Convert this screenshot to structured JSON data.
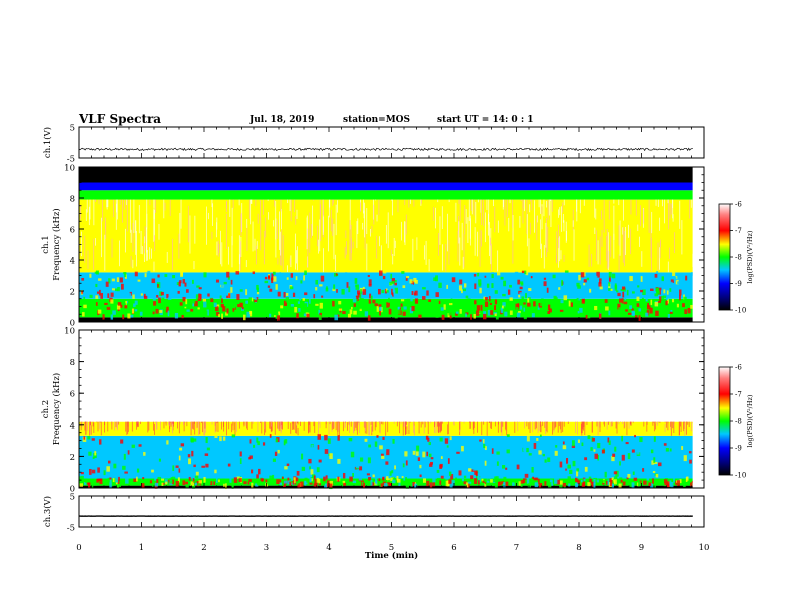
{
  "header": {
    "title": "VLF Spectra",
    "date": "Jul. 18, 2019",
    "station": "station=MOS",
    "start": "start UT =  14: 0  : 1"
  },
  "colors": {
    "scale": [
      "#000000",
      "#000080",
      "#0000ff",
      "#00c8ff",
      "#00ff00",
      "#ffff00",
      "#ff0000",
      "#ffffff"
    ]
  },
  "chart_data": [
    {
      "type": "line",
      "id": "ch1-waveform",
      "ylabel": "ch.1(V)",
      "ylim": [
        -5,
        5
      ],
      "yticks": [
        5,
        -5
      ],
      "xlim": [
        0,
        10
      ],
      "y_approx": -2.2,
      "noise_amplitude": 0.35,
      "grid": false
    },
    {
      "type": "heatmap",
      "id": "ch1-spectrogram",
      "ylabel": "ch.1\nFrequency (kHz)",
      "ylim": [
        0,
        10
      ],
      "yticks": [
        0,
        2,
        4,
        6,
        8,
        10
      ],
      "xlim": [
        0,
        10
      ],
      "data_xmax": 9.82,
      "colorbar": {
        "label": "log(PSD)(V²/Hz)",
        "range": [
          -10,
          -6
        ],
        "ticks": [
          -6,
          -7,
          -8,
          -9,
          -10
        ]
      },
      "bands_kHz": [
        {
          "from": 0.0,
          "to": 0.3,
          "level": -10
        },
        {
          "from": 0.3,
          "to": 1.5,
          "level": -7.5
        },
        {
          "from": 1.5,
          "to": 3.2,
          "level": -7.9
        },
        {
          "from": 3.2,
          "to": 7.9,
          "level": -6.9
        },
        {
          "from": 7.9,
          "to": 8.5,
          "level": -7.6
        },
        {
          "from": 8.5,
          "to": 9.0,
          "level": -8.8
        },
        {
          "from": 9.0,
          "to": 10.0,
          "level": -10
        }
      ]
    },
    {
      "type": "heatmap",
      "id": "ch2-spectrogram",
      "ylabel": "ch.2\nFrequency (kHz)",
      "ylim": [
        0,
        10
      ],
      "yticks": [
        0,
        2,
        4,
        6,
        8,
        10
      ],
      "xlim": [
        0,
        10
      ],
      "data_xmax": 9.82,
      "colorbar": {
        "label": "log(PSD)(V²/Hz)",
        "range": [
          -10,
          -6
        ],
        "ticks": [
          -6,
          -7,
          -8,
          -9,
          -10
        ]
      },
      "bands_kHz": [
        {
          "from": 0.0,
          "to": 0.15,
          "level": -10
        },
        {
          "from": 0.15,
          "to": 0.6,
          "level": -7.3
        },
        {
          "from": 0.6,
          "to": 3.3,
          "level": -7.9
        },
        {
          "from": 3.3,
          "to": 4.2,
          "level": -6.6
        },
        {
          "from": 4.2,
          "to": 10.0,
          "level": -5.8
        }
      ]
    },
    {
      "type": "line",
      "id": "ch3-waveform",
      "ylabel": "ch.3(V)",
      "ylim": [
        -5,
        5
      ],
      "yticks": [
        5,
        -5
      ],
      "xlim": [
        0,
        10
      ],
      "y_approx": -1.5,
      "noise_amplitude": 0.02,
      "xlabel": "Time (min)",
      "xticks": [
        0,
        1,
        2,
        3,
        4,
        5,
        6,
        7,
        8,
        9,
        10
      ],
      "grid": false
    }
  ]
}
